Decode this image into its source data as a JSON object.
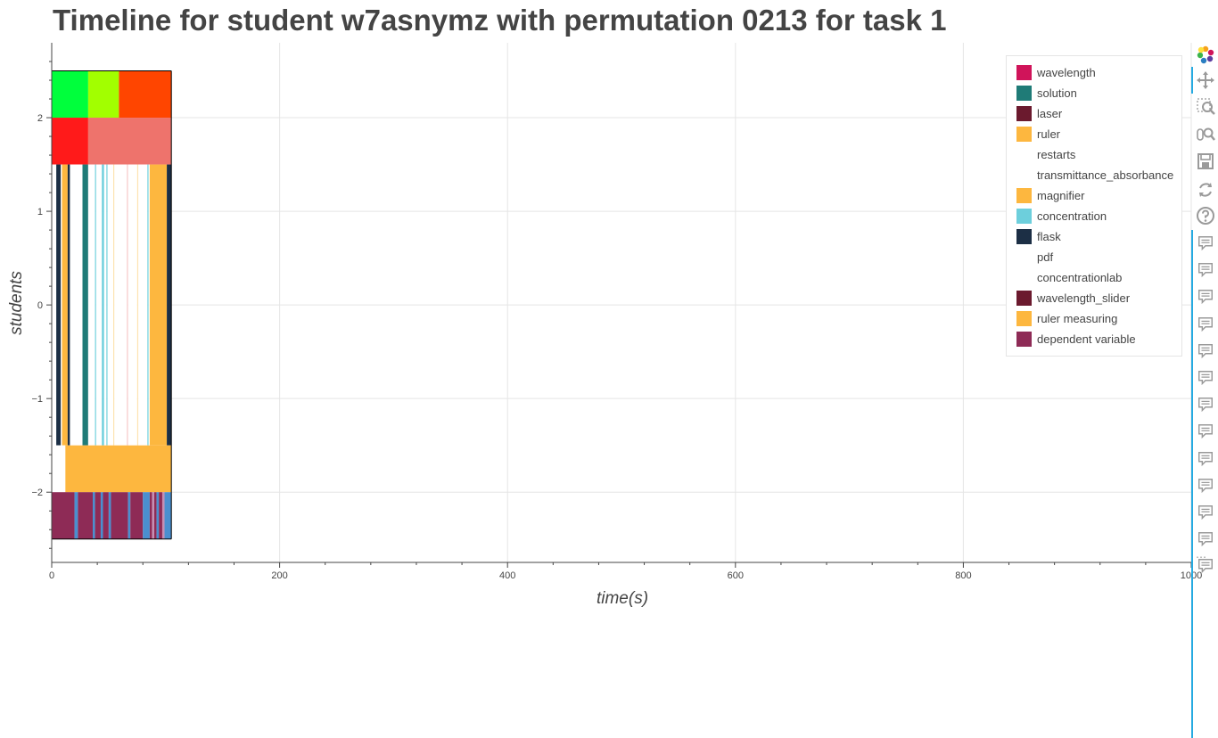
{
  "title": "Timeline for student w7asnymz with permutation 0213 for task 1",
  "colors": {
    "axis": "#444444",
    "grid": "#e5e5e5",
    "bar_outline": "#000000",
    "toolbar_accent": "#26aae1",
    "toolbar_icon": "#9a9a9a"
  },
  "chart_data": {
    "type": "bar",
    "orientation": "horizontal-timeline",
    "xlabel": "time(s)",
    "ylabel": "students",
    "xlim": [
      0,
      1000
    ],
    "ylim": [
      -2.75,
      2.8
    ],
    "x_ticks": [
      0,
      200,
      400,
      600,
      800,
      1000
    ],
    "x_tick_labels": [
      "0",
      "200",
      "400",
      "600",
      "800",
      "1000"
    ],
    "y_ticks": [
      -2,
      -1,
      0,
      1,
      2
    ],
    "y_tick_labels": [
      "−2",
      "−1",
      "0",
      "1",
      "2"
    ],
    "grid": true,
    "legend_placement": "top-right",
    "series": [
      {
        "name": "wavelength",
        "color": "#d0145a"
      },
      {
        "name": "solution",
        "color": "#1f7b77"
      },
      {
        "name": "laser",
        "color": "#6b1a2e"
      },
      {
        "name": "ruler",
        "color": "#fdb73f"
      },
      {
        "name": "restarts",
        "color": "#ffffff"
      },
      {
        "name": "transmittance_absorbance",
        "color": "#ffffff"
      },
      {
        "name": "magnifier",
        "color": "#fdb73f"
      },
      {
        "name": "concentration",
        "color": "#6dcfdc"
      },
      {
        "name": "flask",
        "color": "#1c2f45"
      },
      {
        "name": "pdf",
        "color": "#ffffff"
      },
      {
        "name": "concentrationlab",
        "color": "#ffffff"
      },
      {
        "name": "wavelength_slider",
        "color": "#6b1a2e"
      },
      {
        "name": "ruler measuring",
        "color": "#fdb73f"
      },
      {
        "name": "dependent variable",
        "color": "#8e2b56"
      }
    ],
    "rows": [
      {
        "y_range": [
          2.0,
          2.5
        ],
        "segments": [
          {
            "start": 0,
            "end": 32,
            "color": "#00ff3c"
          },
          {
            "start": 32,
            "end": 59,
            "color": "#a2ff00"
          },
          {
            "start": 59,
            "end": 105,
            "color": "#ff4500"
          }
        ]
      },
      {
        "y_range": [
          1.5,
          2.0
        ],
        "segments": [
          {
            "start": 0,
            "end": 32,
            "color": "#ff1a1a"
          },
          {
            "start": 32,
            "end": 105,
            "color": "#ee736c"
          }
        ]
      },
      {
        "y_range": [
          -1.5,
          1.5
        ],
        "segments": [
          {
            "start": 0,
            "end": 4,
            "color": "#ffffff"
          },
          {
            "start": 4,
            "end": 8,
            "color": "#1c2f45"
          },
          {
            "start": 8,
            "end": 9,
            "color": "#ffffff"
          },
          {
            "start": 9,
            "end": 14,
            "color": "#fdb73f"
          },
          {
            "start": 14,
            "end": 16,
            "color": "#1c2f45"
          },
          {
            "start": 16,
            "end": 27,
            "color": "#ffffff"
          },
          {
            "start": 27,
            "end": 32,
            "color": "#1f7b77"
          },
          {
            "start": 32,
            "end": 38,
            "color": "#ffffff"
          },
          {
            "start": 38,
            "end": 39,
            "color": "#6dcfdc"
          },
          {
            "start": 39,
            "end": 44,
            "color": "#ffffff"
          },
          {
            "start": 44,
            "end": 46,
            "color": "#6dcfdc"
          },
          {
            "start": 46,
            "end": 48,
            "color": "#ffffff"
          },
          {
            "start": 48,
            "end": 49,
            "color": "#6dcfdc"
          },
          {
            "start": 49,
            "end": 54,
            "color": "#ffffff"
          },
          {
            "start": 54,
            "end": 55,
            "color": "#fde3b0"
          },
          {
            "start": 55,
            "end": 66,
            "color": "#ffffff"
          },
          {
            "start": 66,
            "end": 67,
            "color": "#f7c7c7"
          },
          {
            "start": 67,
            "end": 75,
            "color": "#ffffff"
          },
          {
            "start": 75,
            "end": 76,
            "color": "#fde3b0"
          },
          {
            "start": 76,
            "end": 84,
            "color": "#ffffff"
          },
          {
            "start": 84,
            "end": 85,
            "color": "#6dcfdc"
          },
          {
            "start": 85,
            "end": 86,
            "color": "#ffffff"
          },
          {
            "start": 86,
            "end": 101,
            "color": "#fdb73f"
          },
          {
            "start": 101,
            "end": 105,
            "color": "#1c2f45"
          }
        ]
      },
      {
        "y_range": [
          -2.0,
          -1.5
        ],
        "segments": [
          {
            "start": 0,
            "end": 12,
            "color": "#ffffff"
          },
          {
            "start": 12,
            "end": 105,
            "color": "#fdb73f"
          }
        ]
      },
      {
        "y_range": [
          -2.5,
          -2.0
        ],
        "segments": [
          {
            "start": 0,
            "end": 20,
            "color": "#8e2b56"
          },
          {
            "start": 20,
            "end": 23,
            "color": "#4a8fcf"
          },
          {
            "start": 23,
            "end": 36,
            "color": "#8e2b56"
          },
          {
            "start": 36,
            "end": 38,
            "color": "#4a8fcf"
          },
          {
            "start": 38,
            "end": 43,
            "color": "#8e2b56"
          },
          {
            "start": 43,
            "end": 45,
            "color": "#4a8fcf"
          },
          {
            "start": 45,
            "end": 50,
            "color": "#8e2b56"
          },
          {
            "start": 50,
            "end": 52,
            "color": "#4a8fcf"
          },
          {
            "start": 52,
            "end": 67,
            "color": "#8e2b56"
          },
          {
            "start": 67,
            "end": 69,
            "color": "#4a8fcf"
          },
          {
            "start": 69,
            "end": 80,
            "color": "#8e2b56"
          },
          {
            "start": 80,
            "end": 86,
            "color": "#4a8fcf"
          },
          {
            "start": 86,
            "end": 88,
            "color": "#8e2b56"
          },
          {
            "start": 88,
            "end": 90,
            "color": "#c58fb3"
          },
          {
            "start": 90,
            "end": 92,
            "color": "#8e2b56"
          },
          {
            "start": 92,
            "end": 94,
            "color": "#4a8fcf"
          },
          {
            "start": 94,
            "end": 97,
            "color": "#8e2b56"
          },
          {
            "start": 97,
            "end": 99,
            "color": "#c58fb3"
          },
          {
            "start": 99,
            "end": 105,
            "color": "#4a8fcf"
          }
        ]
      }
    ]
  },
  "toolbar": {
    "tools": [
      {
        "icon": "bokeh-logo-icon"
      },
      {
        "icon": "pan-icon"
      },
      {
        "icon": "box-zoom-icon"
      },
      {
        "icon": "wheel-zoom-icon"
      },
      {
        "icon": "save-icon"
      },
      {
        "icon": "reset-icon"
      },
      {
        "icon": "help-icon"
      }
    ],
    "hover_tool_count": 13,
    "overflow_label": "⋯"
  }
}
